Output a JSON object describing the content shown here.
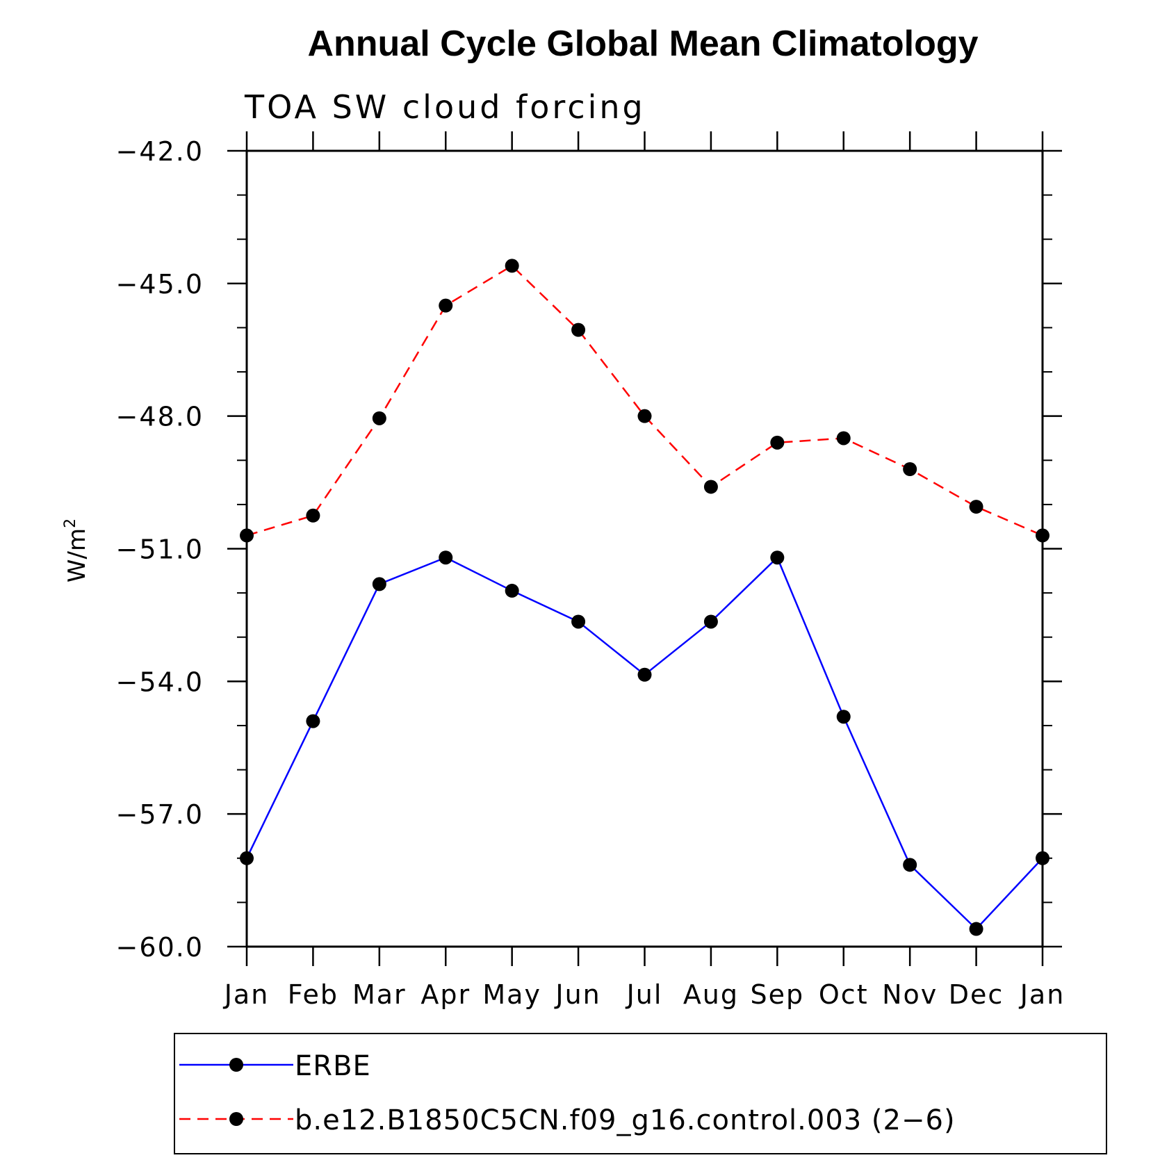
{
  "chart_data": {
    "type": "line",
    "title": "Annual Cycle Global Mean Climatology",
    "subtitle": "TOA SW cloud forcing",
    "ylabel": "W/m",
    "ylabel_superscript": "2",
    "xlabel": "",
    "categories": [
      "Jan",
      "Feb",
      "Mar",
      "Apr",
      "May",
      "Jun",
      "Jul",
      "Aug",
      "Sep",
      "Oct",
      "Nov",
      "Dec",
      "Jan"
    ],
    "ylim": [
      -60,
      -42
    ],
    "yticks": [
      -42,
      -45,
      -48,
      -51,
      -54,
      -57,
      -60
    ],
    "ytick_labels": [
      "−42.0",
      "−45.0",
      "−48.0",
      "−51.0",
      "−54.0",
      "−57.0",
      "−60.0"
    ],
    "grid": false,
    "legend_position": "bottom",
    "series": [
      {
        "name": "ERBE",
        "color": "#0000ff",
        "line_style": "solid",
        "marker": "filled-circle",
        "values": [
          -58.0,
          -54.9,
          -51.8,
          -51.2,
          -51.95,
          -52.65,
          -53.85,
          -52.65,
          -51.2,
          -54.8,
          -58.15,
          -59.6,
          -58.0
        ]
      },
      {
        "name": "b.e12.B1850C5CN.f09_g16.control.003 (2−6)",
        "color": "#ff0000",
        "line_style": "dashed",
        "marker": "filled-circle",
        "values": [
          -50.7,
          -50.25,
          -48.05,
          -45.5,
          -44.6,
          -46.05,
          -48.0,
          -49.6,
          -48.6,
          -48.5,
          -49.2,
          -50.05,
          -50.7
        ]
      }
    ]
  }
}
